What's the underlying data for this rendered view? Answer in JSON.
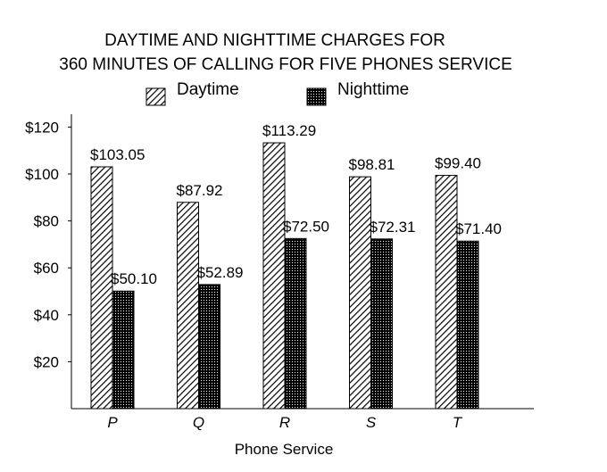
{
  "chart_data": {
    "type": "bar",
    "title": "DAYTIME AND NIGHTTIME CHARGES FOR",
    "subtitle": "360 MINUTES OF CALLING FOR FIVE PHONES SERVICE",
    "xlabel": "Phone Service",
    "ylabel": "",
    "categories": [
      "P",
      "Q",
      "R",
      "S",
      "T"
    ],
    "series": [
      {
        "name": "Daytime",
        "values": [
          103.05,
          87.92,
          113.29,
          98.81,
          99.4
        ],
        "labels": [
          "$103.05",
          "$87.92",
          "$113.29",
          "$98.81",
          "$99.40"
        ]
      },
      {
        "name": "Nighttime",
        "values": [
          50.1,
          52.89,
          72.5,
          72.31,
          71.4
        ],
        "labels": [
          "$50.10",
          "$52.89",
          "$72.50",
          "$72.31",
          "$71.40"
        ]
      }
    ],
    "yticks": [
      20,
      40,
      60,
      80,
      100,
      120
    ],
    "ytick_labels": [
      "$20",
      "$40",
      "$60",
      "$80",
      "$100",
      "$120"
    ],
    "ylim": [
      0,
      125
    ],
    "grid": false,
    "legend_position": "top-center"
  }
}
